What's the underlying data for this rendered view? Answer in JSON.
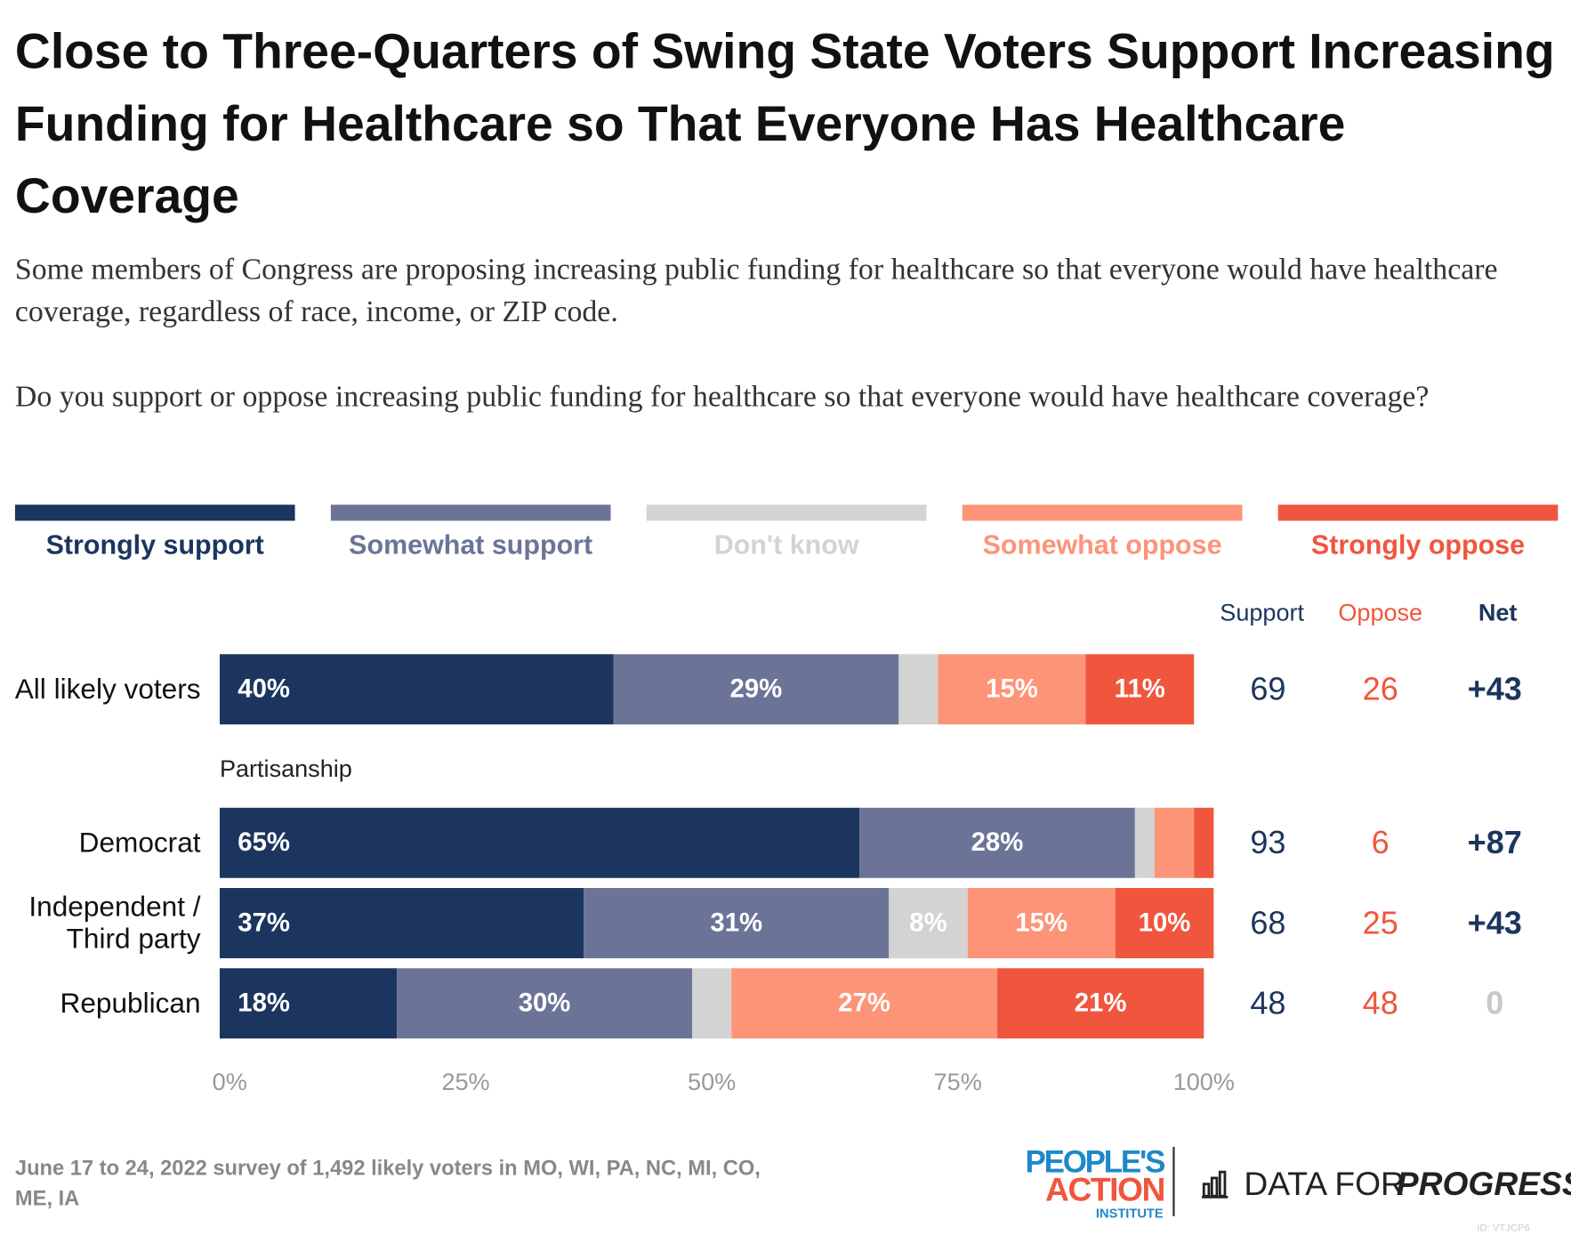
{
  "title": "Close to Three-Quarters of Swing State Voters Support Increasing Funding for Healthcare so That Everyone Has Healthcare Coverage",
  "subtitle": "Some members of Congress are proposing increasing public funding for healthcare so that everyone would have healthcare coverage, regardless of race, income, or ZIP code.",
  "question": "Do you support or oppose increasing public funding for healthcare so that everyone would have healthcare coverage?",
  "chart_data": {
    "type": "bar",
    "orientation": "horizontal",
    "stacked": true,
    "categories": [
      "All likely voters",
      "Democrat",
      "Independent / Third party",
      "Republican"
    ],
    "group_label": "Partisanship",
    "series": [
      {
        "name": "Strongly support",
        "color": "#1c355e",
        "values": [
          40,
          65,
          37,
          18
        ],
        "value_labels": [
          "40%",
          "65%",
          "37%",
          "18%"
        ]
      },
      {
        "name": "Somewhat support",
        "color": "#6b7497",
        "values": [
          29,
          28,
          31,
          30
        ],
        "value_labels": [
          "29%",
          "28%",
          "31%",
          "30%"
        ]
      },
      {
        "name": "Don't know",
        "color": "#d3d3d3",
        "values": [
          4,
          2,
          8,
          4
        ],
        "value_labels": [
          null,
          null,
          "8%",
          null
        ]
      },
      {
        "name": "Somewhat oppose",
        "color": "#fd9478",
        "values": [
          15,
          4,
          15,
          27
        ],
        "value_labels": [
          "15%",
          null,
          "15%",
          "27%"
        ]
      },
      {
        "name": "Strongly oppose",
        "color": "#f0563d",
        "values": [
          11,
          2,
          10,
          21
        ],
        "value_labels": [
          "11%",
          null,
          "10%",
          "21%"
        ]
      }
    ],
    "xlim": [
      0,
      100
    ],
    "xticks": [
      {
        "value": 0,
        "label": "0%"
      },
      {
        "value": 25,
        "label": "25%"
      },
      {
        "value": 50,
        "label": "50%"
      },
      {
        "value": 75,
        "label": "75%"
      },
      {
        "value": 100,
        "label": "100%"
      }
    ],
    "summary": {
      "headers": [
        "Support",
        "Oppose",
        "Net"
      ],
      "header_colors": [
        "#1c355e",
        "#f0563d",
        "#1c355e"
      ],
      "rows": [
        [
          69,
          26,
          "+43"
        ],
        [
          93,
          6,
          "+87"
        ],
        [
          68,
          25,
          "+43"
        ],
        [
          48,
          48,
          "0"
        ]
      ],
      "net_colors": [
        "#1c355e",
        "#1c355e",
        "#1c355e",
        "#c8c8c8"
      ]
    }
  },
  "note": "June 17 to 24, 2022 survey of 1,492 likely voters in MO, WI, PA, NC, MI, CO, ME, IA",
  "logos": {
    "peoples": "PEOPLE'S",
    "action": "ACTION",
    "institute": "INSTITUTE",
    "dfp1": "DATA FOR",
    "dfp2": "PROGRESS",
    "id": "ID: VTJCP6"
  }
}
